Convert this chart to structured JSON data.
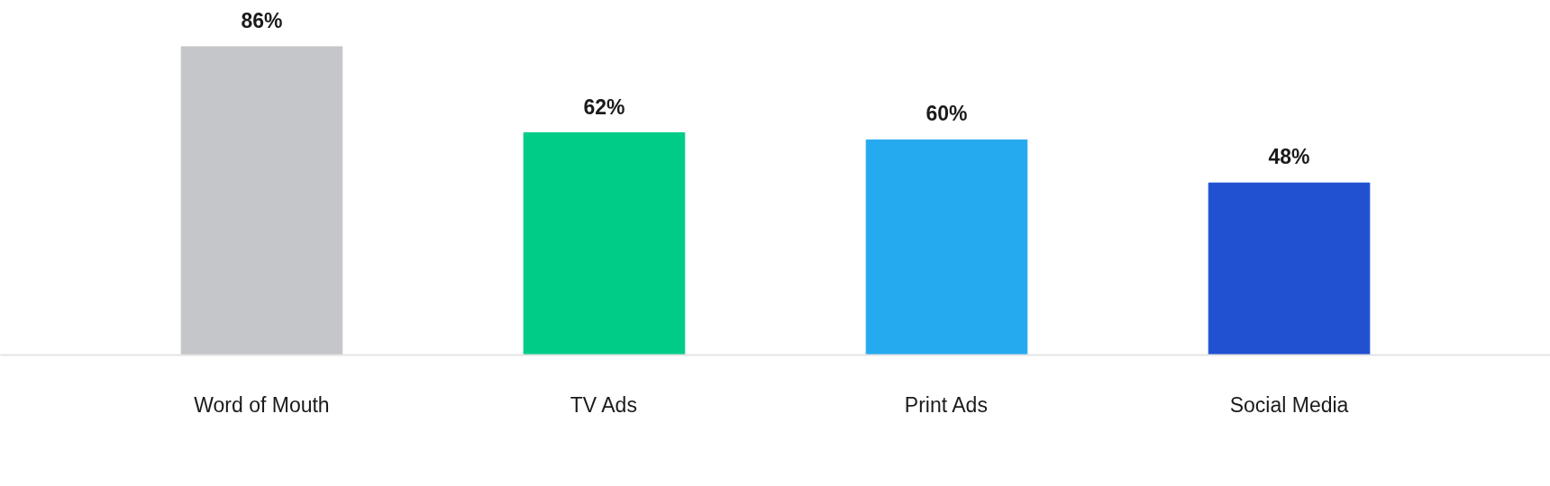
{
  "chart_data": {
    "type": "bar",
    "categories": [
      "Word of Mouth",
      "TV Ads",
      "Print Ads",
      "Social Media"
    ],
    "values": [
      86,
      62,
      60,
      48
    ],
    "colors": [
      "#c5c6c9",
      "#00cc88",
      "#26aaef",
      "#2150d1"
    ],
    "data_labels": true,
    "value_labels": [
      "86%",
      "62%",
      "60%",
      "48%"
    ],
    "grid": false
  }
}
